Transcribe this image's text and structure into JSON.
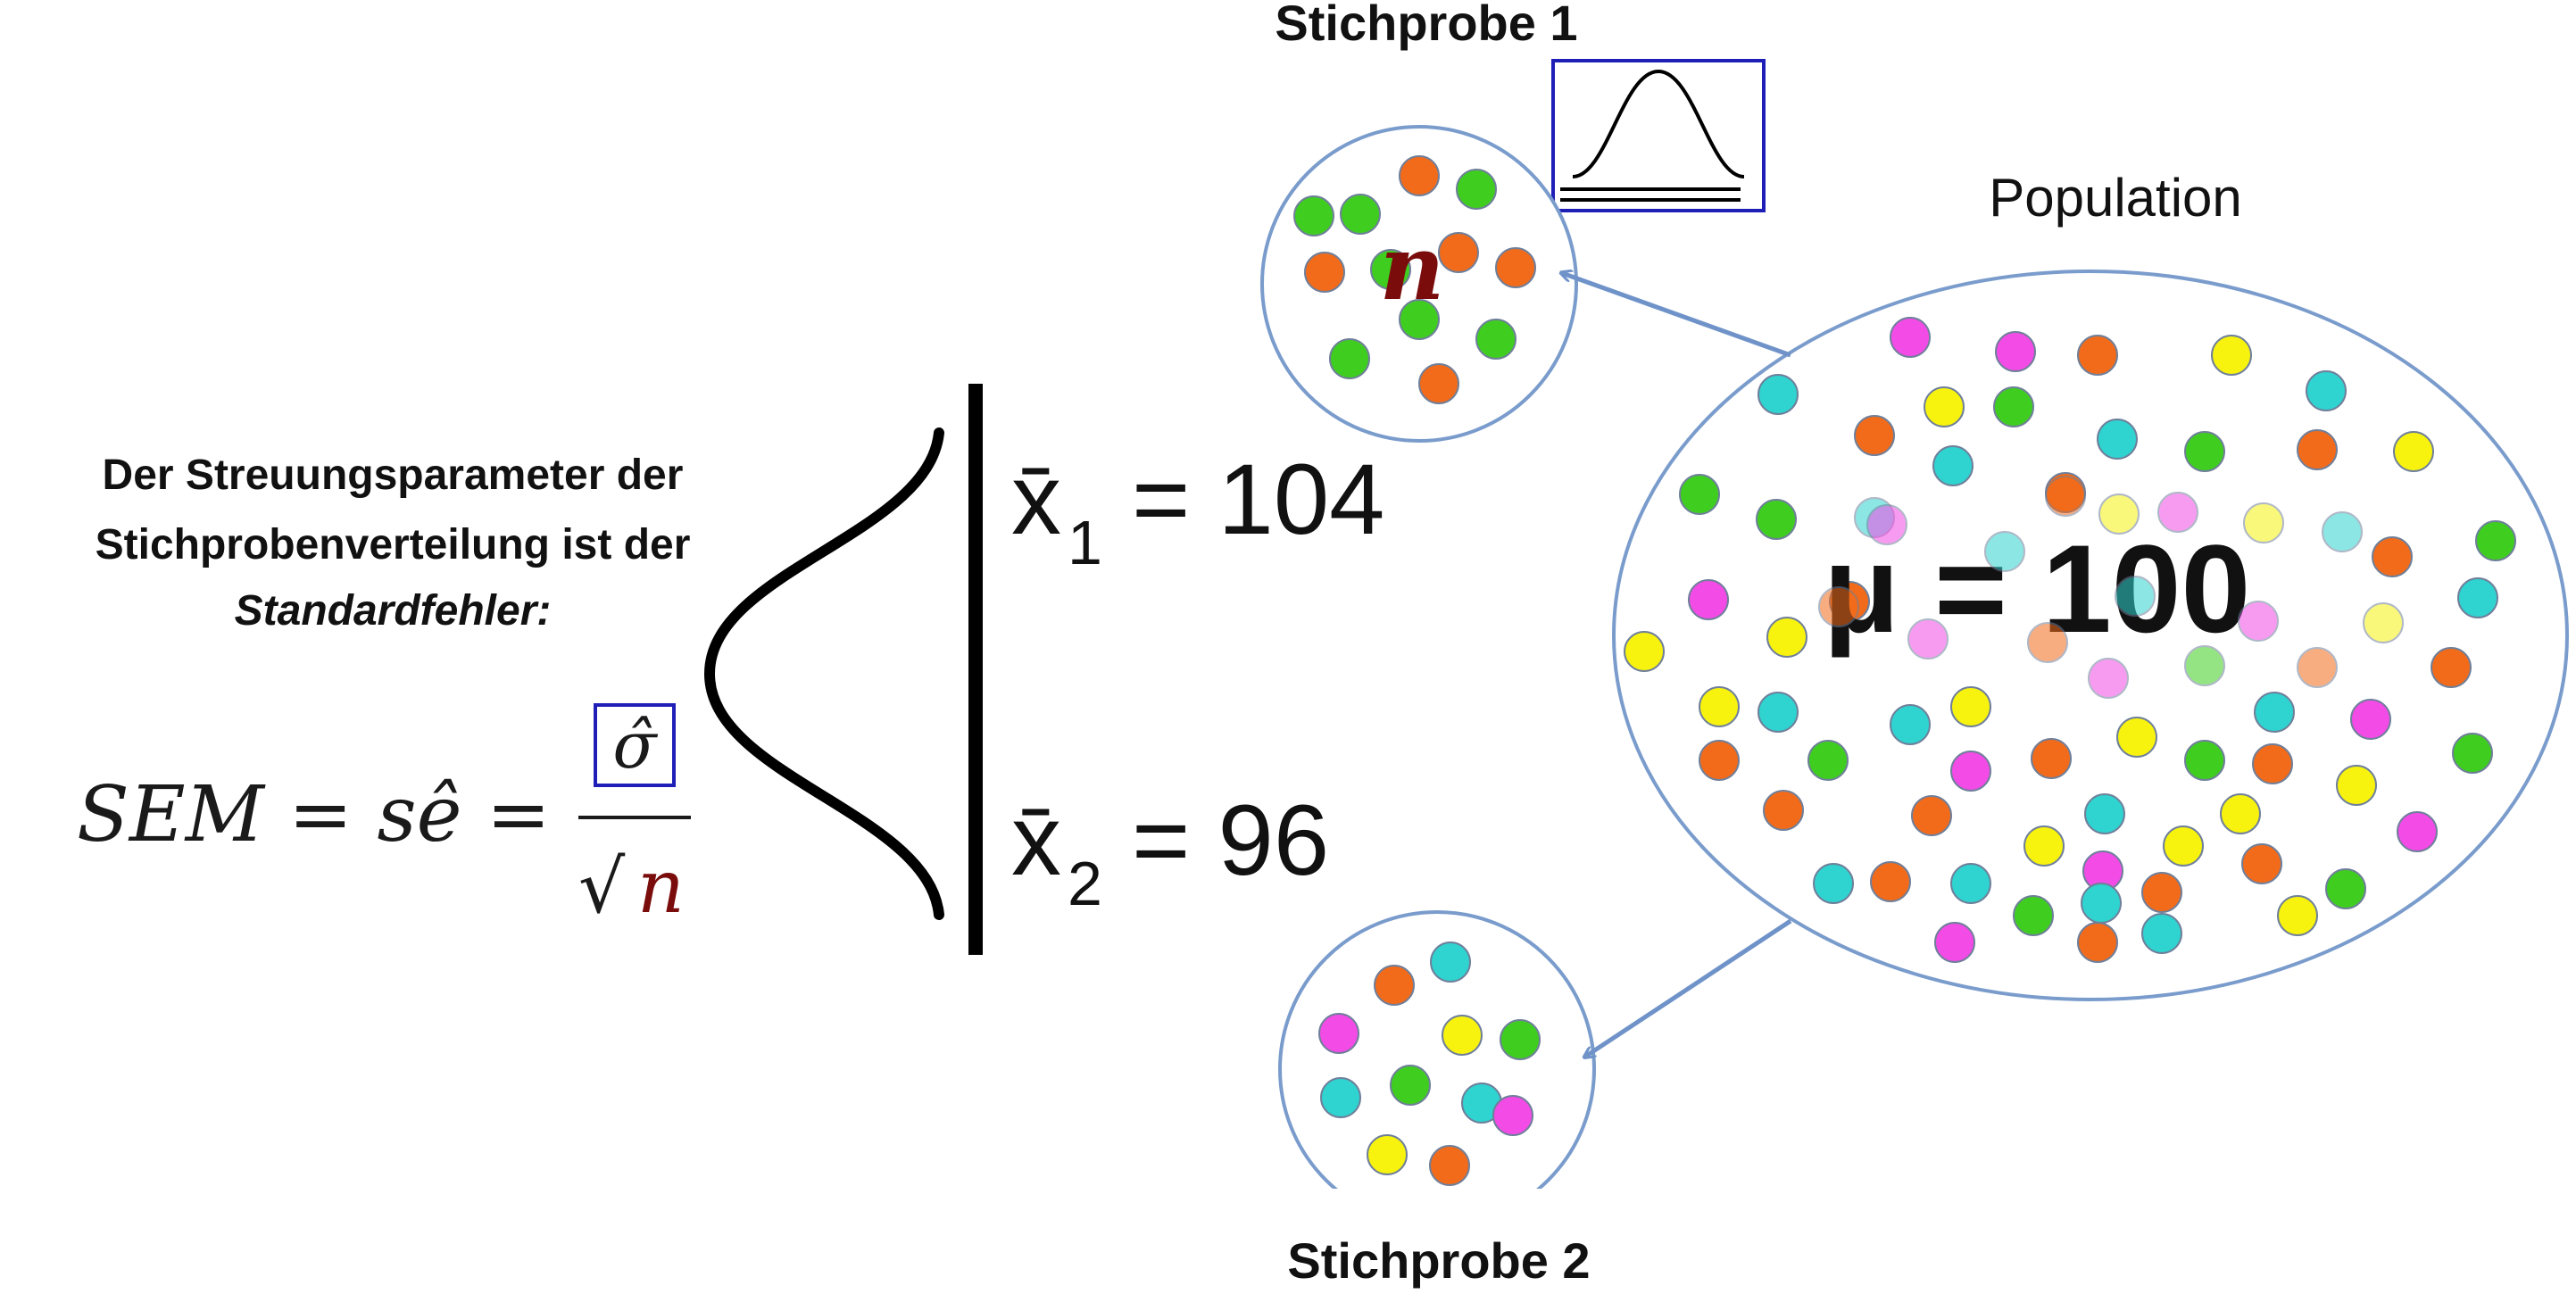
{
  "explanation": {
    "line1": "Der Streuungsparameter der",
    "line2": "Stichprobenverteilung ist der",
    "line3": "Standardfehler:"
  },
  "formula": {
    "lhs": "SEM = sê =",
    "numerator": "σ̂",
    "denominator_root": "√",
    "denominator_n": "n"
  },
  "means": {
    "sample1_symbol": "x̄",
    "sample1_sub": "1",
    "sample1_value": "= 104",
    "sample2_symbol": "x̄",
    "sample2_sub": "2",
    "sample2_value": "= 96"
  },
  "sample1": {
    "title": "Stichprobe 1",
    "size_label": "n"
  },
  "sample2": {
    "title": "Stichprobe 2"
  },
  "population": {
    "title": "Population",
    "mean_label": "μ = 100"
  },
  "colors": {
    "green": "#3fce1f",
    "orange": "#f26b1a",
    "cyan": "#2fd3cf",
    "magenta": "#f24be6",
    "yellow": "#f7f30f",
    "circle_stroke": "#7a9ccc",
    "arrow": "#6f93c9",
    "box_stroke": "#1f1fb8",
    "n_color": "#7a0c0c"
  }
}
